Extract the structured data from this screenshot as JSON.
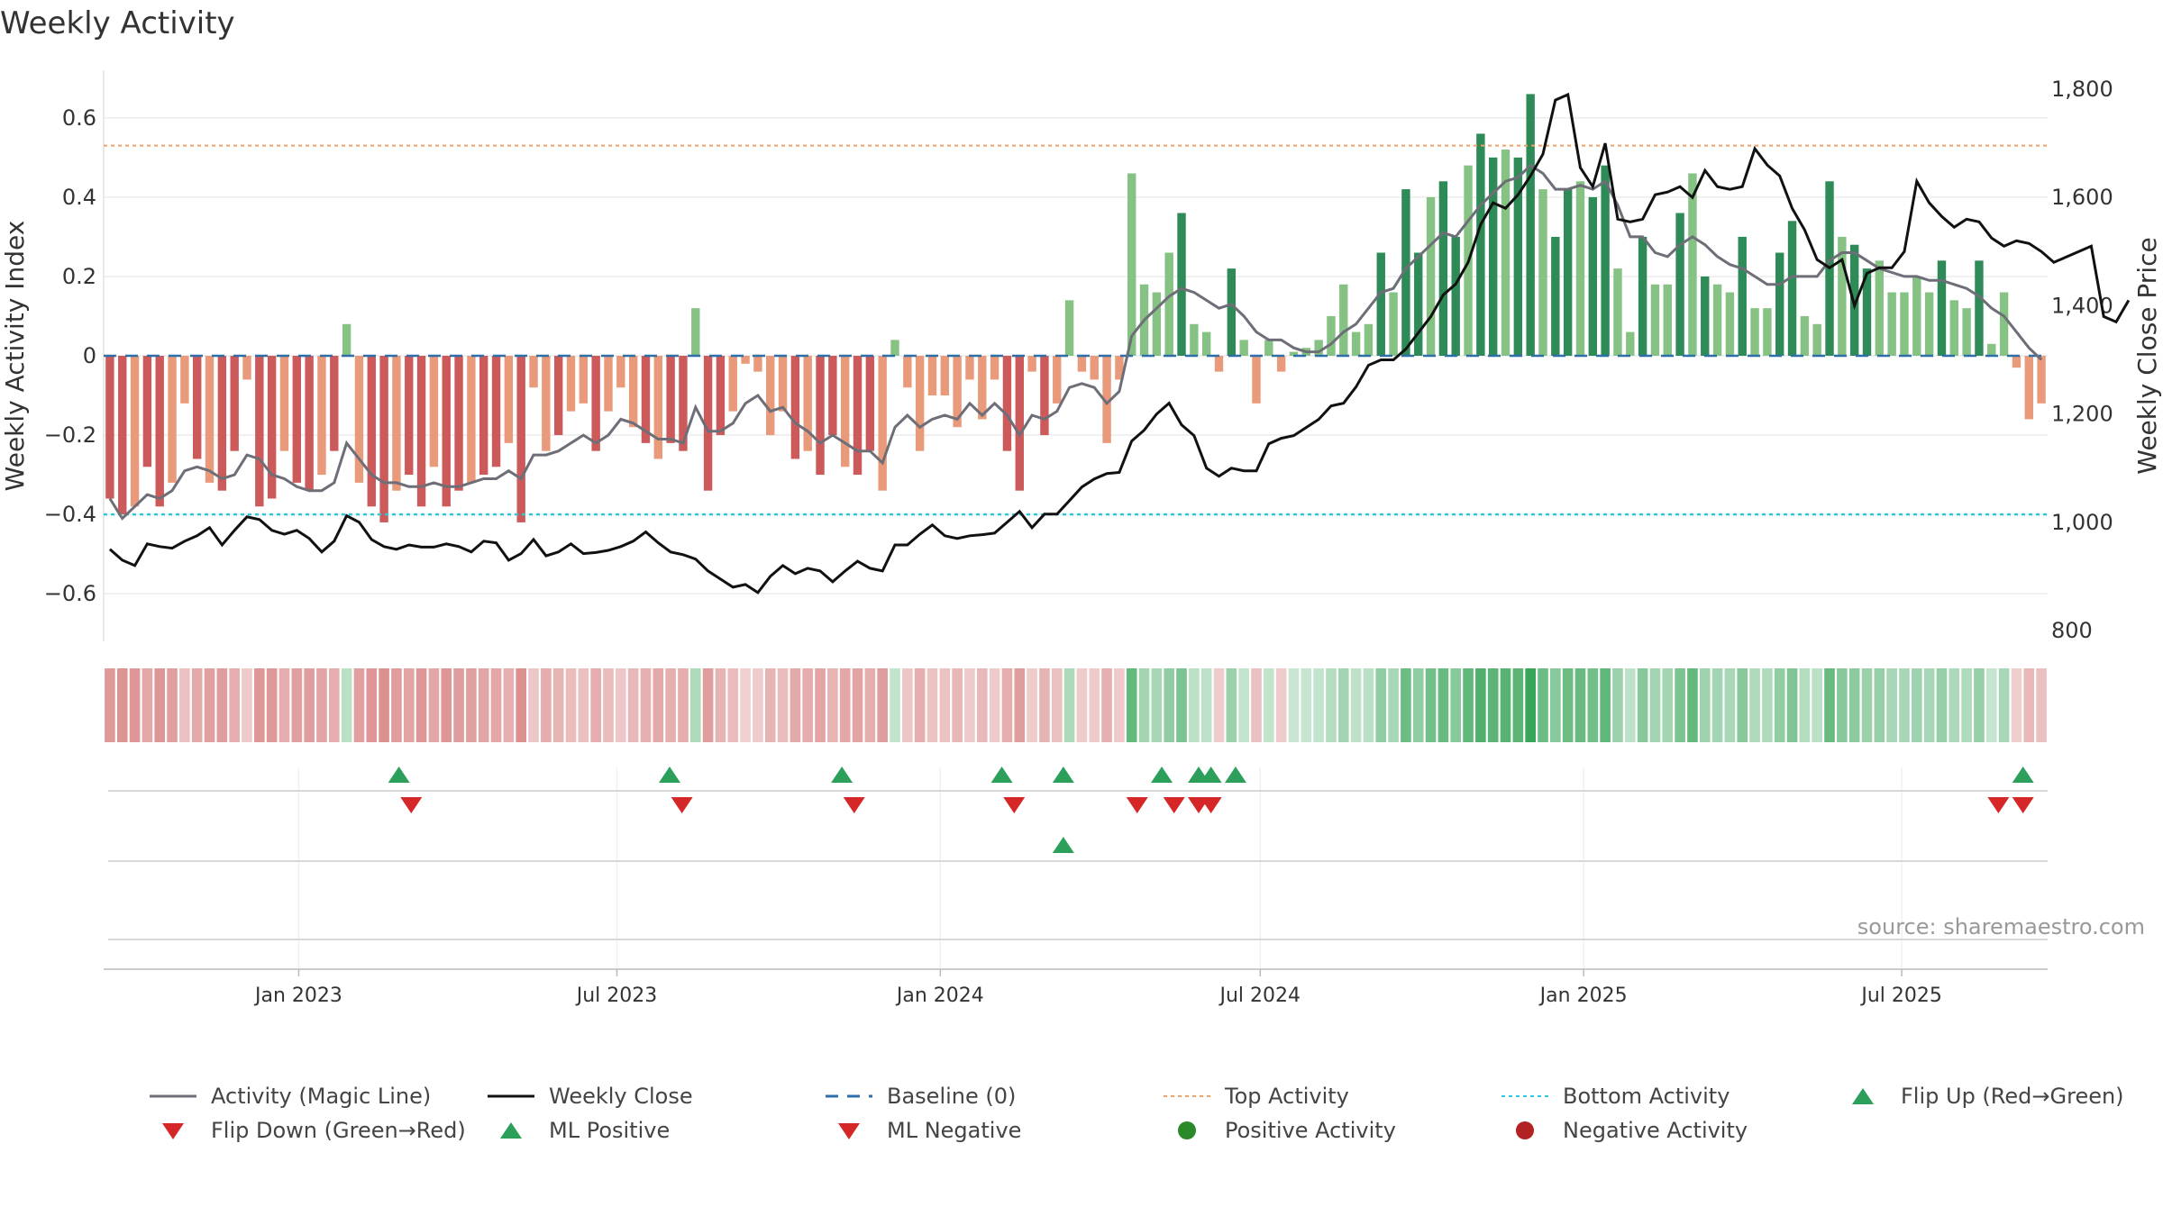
{
  "chart_data": {
    "type": "bar",
    "title": "Weekly Activity",
    "ylabel": "Weekly Activity Index",
    "y2label": "Weekly Close Price",
    "ylim": [
      -0.72,
      0.72
    ],
    "y2lim": [
      780,
      1835
    ],
    "yticks": [
      "0.6",
      "0.4",
      "0.2",
      "0",
      "−0.2",
      "−0.4",
      "−0.6"
    ],
    "yticks_values": [
      0.6,
      0.4,
      0.2,
      0,
      -0.2,
      -0.4,
      -0.6
    ],
    "y2ticks": [
      "1,800",
      "1,600",
      "1,400",
      "1,200",
      "1,000",
      "800"
    ],
    "y2ticks_values": [
      1800,
      1600,
      1400,
      1200,
      1000,
      800
    ],
    "x_start": "2022-09-12",
    "x_end": "2025-09-22",
    "xticks": [
      "Jan 2023",
      "Jul 2023",
      "Jan 2024",
      "Jul 2024",
      "Jan 2025",
      "Jul 2025"
    ],
    "top_activity": 0.53,
    "bottom_activity": -0.4,
    "baseline": 0,
    "series": [
      {
        "name": "Weekly Activity Index",
        "values": [
          -0.36,
          -0.4,
          -0.38,
          -0.28,
          -0.38,
          -0.32,
          -0.12,
          -0.26,
          -0.32,
          -0.34,
          -0.24,
          -0.06,
          -0.38,
          -0.36,
          -0.24,
          -0.32,
          -0.34,
          -0.3,
          -0.24,
          0.08,
          -0.32,
          -0.38,
          -0.42,
          -0.34,
          -0.3,
          -0.38,
          -0.28,
          -0.38,
          -0.34,
          -0.32,
          -0.3,
          -0.28,
          -0.22,
          -0.42,
          -0.08,
          -0.24,
          -0.2,
          -0.14,
          -0.12,
          -0.24,
          -0.14,
          -0.08,
          -0.18,
          -0.22,
          -0.26,
          -0.22,
          -0.24,
          0.12,
          -0.34,
          -0.2,
          -0.14,
          -0.02,
          -0.04,
          -0.2,
          -0.14,
          -0.26,
          -0.24,
          -0.3,
          -0.2,
          -0.28,
          -0.3,
          -0.24,
          -0.34,
          0.04,
          -0.08,
          -0.24,
          -0.1,
          -0.1,
          -0.18,
          -0.06,
          -0.16,
          -0.06,
          -0.24,
          -0.34,
          -0.04,
          -0.2,
          -0.12,
          0.14,
          -0.04,
          -0.06,
          -0.22,
          -0.06,
          0.46,
          0.18,
          0.16,
          0.26,
          0.36,
          0.08,
          0.06,
          -0.04,
          0.22,
          0.04,
          -0.12,
          0.04,
          -0.04,
          0.01,
          0.02,
          0.04,
          0.1,
          0.18,
          0.06,
          0.08,
          0.26,
          0.16,
          0.42,
          0.26,
          0.4,
          0.44,
          0.3,
          0.48,
          0.56,
          0.5,
          0.52,
          0.5,
          0.66,
          0.42,
          0.3,
          0.42,
          0.44,
          0.4,
          0.48,
          0.22,
          0.06,
          0.3,
          0.18,
          0.18,
          0.36,
          0.46,
          0.2,
          0.18,
          0.16,
          0.3,
          0.12,
          0.12,
          0.26,
          0.34,
          0.1,
          0.08,
          0.44,
          0.3,
          0.28,
          0.22,
          0.24,
          0.16,
          0.16,
          0.2,
          0.16,
          0.24,
          0.14,
          0.12,
          0.24,
          0.03,
          0.16,
          -0.03,
          -0.16,
          -0.12
        ]
      },
      {
        "name": "Activity (Magic Line)",
        "values": [
          -0.36,
          -0.41,
          -0.38,
          -0.35,
          -0.36,
          -0.34,
          -0.29,
          -0.28,
          -0.29,
          -0.31,
          -0.3,
          -0.25,
          -0.26,
          -0.3,
          -0.31,
          -0.33,
          -0.34,
          -0.34,
          -0.32,
          -0.22,
          -0.26,
          -0.3,
          -0.32,
          -0.32,
          -0.33,
          -0.33,
          -0.32,
          -0.33,
          -0.33,
          -0.32,
          -0.31,
          -0.31,
          -0.29,
          -0.31,
          -0.25,
          -0.25,
          -0.24,
          -0.22,
          -0.2,
          -0.22,
          -0.2,
          -0.16,
          -0.17,
          -0.19,
          -0.21,
          -0.21,
          -0.22,
          -0.13,
          -0.19,
          -0.19,
          -0.17,
          -0.12,
          -0.1,
          -0.14,
          -0.13,
          -0.17,
          -0.19,
          -0.22,
          -0.2,
          -0.22,
          -0.24,
          -0.24,
          -0.27,
          -0.18,
          -0.15,
          -0.18,
          -0.16,
          -0.15,
          -0.16,
          -0.12,
          -0.15,
          -0.12,
          -0.15,
          -0.2,
          -0.15,
          -0.16,
          -0.14,
          -0.08,
          -0.07,
          -0.08,
          -0.12,
          -0.09,
          0.05,
          0.09,
          0.12,
          0.15,
          0.17,
          0.16,
          0.14,
          0.12,
          0.13,
          0.1,
          0.06,
          0.04,
          0.04,
          0.02,
          0.01,
          0.01,
          0.03,
          0.06,
          0.08,
          0.12,
          0.16,
          0.17,
          0.22,
          0.25,
          0.28,
          0.31,
          0.3,
          0.34,
          0.38,
          0.41,
          0.44,
          0.45,
          0.48,
          0.46,
          0.42,
          0.42,
          0.43,
          0.42,
          0.44,
          0.38,
          0.3,
          0.3,
          0.26,
          0.25,
          0.28,
          0.3,
          0.28,
          0.25,
          0.23,
          0.22,
          0.2,
          0.18,
          0.18,
          0.2,
          0.2,
          0.2,
          0.24,
          0.26,
          0.26,
          0.24,
          0.22,
          0.21,
          0.2,
          0.2,
          0.19,
          0.19,
          0.18,
          0.17,
          0.15,
          0.12,
          0.1,
          0.06,
          0.02,
          -0.01
        ]
      },
      {
        "name": "Weekly Close",
        "values": [
          950,
          930,
          920,
          960,
          955,
          952,
          965,
          975,
          990,
          958,
          985,
          1010,
          1005,
          985,
          978,
          985,
          970,
          945,
          965,
          1012,
          1000,
          968,
          955,
          950,
          958,
          954,
          954,
          960,
          955,
          945,
          965,
          962,
          930,
          942,
          968,
          938,
          945,
          960,
          942,
          944,
          948,
          955,
          965,
          982,
          962,
          945,
          940,
          932,
          910,
          895,
          880,
          885,
          870,
          900,
          920,
          905,
          915,
          910,
          890,
          910,
          928,
          915,
          910,
          958,
          958,
          978,
          995,
          975,
          970,
          975,
          977,
          980,
          1000,
          1020,
          990,
          1015,
          1015,
          1040,
          1065,
          1080,
          1090,
          1092,
          1150,
          1170,
          1200,
          1220,
          1180,
          1160,
          1100,
          1085,
          1100,
          1095,
          1095,
          1145,
          1155,
          1160,
          1175,
          1190,
          1215,
          1220,
          1250,
          1290,
          1300,
          1300,
          1320,
          1350,
          1380,
          1420,
          1440,
          1480,
          1550,
          1590,
          1580,
          1605,
          1640,
          1680,
          1780,
          1790,
          1655,
          1620,
          1700,
          1560,
          1555,
          1560,
          1605,
          1610,
          1620,
          1600,
          1650,
          1620,
          1615,
          1620,
          1690,
          1660,
          1640,
          1580,
          1540,
          1485,
          1470,
          1485,
          1400,
          1460,
          1470,
          1470,
          1500,
          1630,
          1590,
          1565,
          1545,
          1560,
          1555,
          1525,
          1510,
          1520,
          1515,
          1500,
          1480,
          1490,
          1500,
          1510,
          1380,
          1370,
          1410
        ]
      }
    ],
    "signals": {
      "flip_up": [
        "2023-02-27",
        "2023-07-31",
        "2023-11-06",
        "2024-02-05",
        "2024-03-11",
        "2024-05-06",
        "2024-05-27",
        "2024-06-03",
        "2024-06-17",
        "2025-09-08"
      ],
      "flip_down": [
        "2023-03-06",
        "2023-08-07",
        "2023-11-13",
        "2024-02-12",
        "2024-04-22",
        "2024-05-13",
        "2024-05-27",
        "2024-06-03",
        "2025-08-25",
        "2025-09-08"
      ],
      "ml_positive": [
        "2024-03-11"
      ],
      "ml_negative": []
    },
    "legend": [
      "Activity (Magic Line)",
      "Weekly Close",
      "Baseline (0)",
      "Top Activity",
      "Bottom Activity",
      "Flip Up (Red→Green)",
      "Flip Down (Green→Red)",
      "ML Positive",
      "ML Negative",
      "Positive Activity",
      "Negative Activity"
    ],
    "source": "source: sharemaestro.com"
  },
  "colors": {
    "pos_strong": "#2e8b57",
    "pos_light": "#86c283",
    "neg_strong": "#cd5a5a",
    "neg_light": "#e89a7a",
    "magic_line": "#6e6e78",
    "close_line": "#111111",
    "baseline": "#2f6fa8",
    "top_line": "#f0a060",
    "bottom_line": "#30c8d8",
    "flip_up": "#2ca05a",
    "flip_down": "#d62728",
    "positive_dot": "#2a8a2a",
    "negative_dot": "#b22222"
  }
}
